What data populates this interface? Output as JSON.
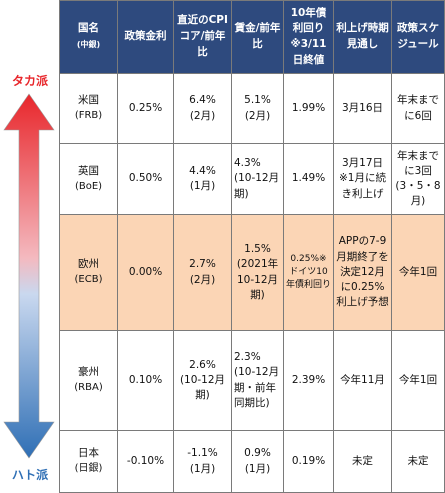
{
  "side": {
    "top_label": "タカ派",
    "bottom_label": "ハト派"
  },
  "headers": {
    "country": "国名",
    "country_sub": "(中銀)",
    "policy_rate": "政策金利",
    "cpi": "直近のCPIコア/前年比",
    "wage": "賃金/前年比",
    "bond": "10年債利回り※3/11日終値",
    "hike": "利上げ時期見通し",
    "schedule": "政策スケジュール"
  },
  "rows": [
    {
      "country": "米国",
      "bank": "(FRB)",
      "policy_rate": "0.25%",
      "cpi": "6.4%",
      "cpi_period": "(2月)",
      "wage": "5.1%",
      "wage_period": "(2月)",
      "bond": "1.99%",
      "hike": "3月16日",
      "schedule": "年末までに6回"
    },
    {
      "country": "英国",
      "bank": "(BoE)",
      "policy_rate": "0.50%",
      "cpi": "4.4%",
      "cpi_period": "(1月)",
      "wage": "4.3%",
      "wage_period": "(10-12月期)",
      "bond": "1.49%",
      "hike": "3月17日※1月に続き利上げ",
      "schedule": "年末までに3回(3・5・8月)"
    },
    {
      "country": "欧州",
      "bank": "(ECB)",
      "policy_rate": "0.00%",
      "cpi": "2.7%",
      "cpi_period": "(2月)",
      "wage": "1.5%",
      "wage_period": "(2021年10-12月期)",
      "bond": "0.25%※ドイツ10年債利回り",
      "hike": "APPの7-9月期終了を決定12月に0.25%利上げ予想",
      "schedule": "今年1回"
    },
    {
      "country": "豪州",
      "bank": "(RBA)",
      "policy_rate": "0.10%",
      "cpi": "2.6%",
      "cpi_period": "(10-12月期)",
      "wage": "2.3%",
      "wage_period": "(10-12月期・前年同期比)",
      "bond": "2.39%",
      "hike": "今年11月",
      "schedule": "今年1回"
    },
    {
      "country": "日本",
      "bank": "(日銀)",
      "policy_rate": "-0.10%",
      "cpi": "-1.1%",
      "cpi_period": "(1月)",
      "wage": "0.9%",
      "wage_period": "(1月)",
      "bond": "0.19%",
      "hike": "未定",
      "schedule": "未定"
    }
  ],
  "colors": {
    "header_bg": "#2e4a7e",
    "ecb_highlight": "#fbd5b5",
    "hawk": "#e8262b",
    "dove": "#2f6fb5"
  }
}
